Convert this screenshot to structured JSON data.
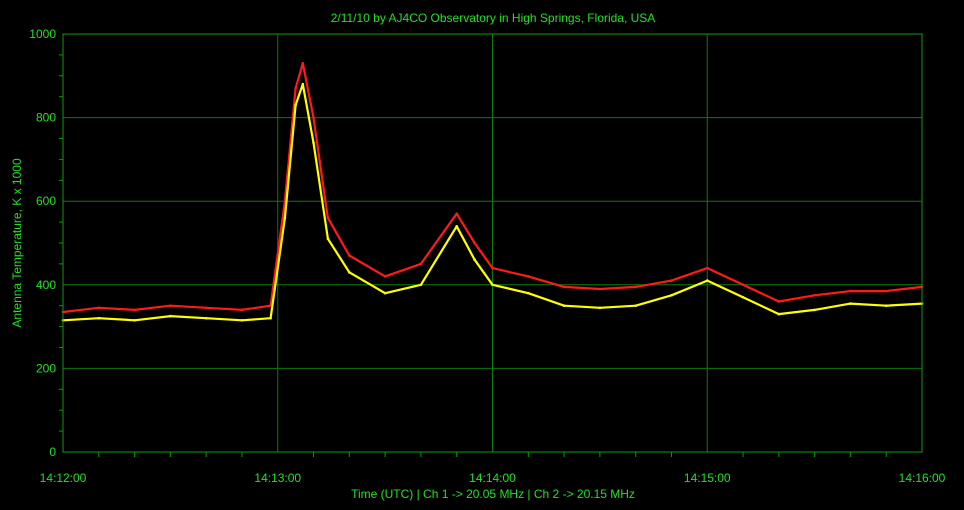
{
  "chart_data": {
    "type": "line",
    "title": "2/11/10  by  AJ4CO Observatory  in  High Springs, Florida, USA",
    "xlabel": "Time (UTC)  |  Ch 1 -> 20.05 MHz  |  Ch 2 -> 20.15 MHz",
    "ylabel": "Antenna Temperature, K x 1000",
    "xlim": [
      "14:12:00",
      "14:16:00"
    ],
    "ylim": [
      0,
      1000
    ],
    "x_ticks": [
      "14:12:00",
      "14:13:00",
      "14:14:00",
      "14:15:00",
      "14:16:00"
    ],
    "y_ticks": [
      0,
      200,
      400,
      600,
      800,
      1000
    ],
    "grid": true,
    "background": "#000000",
    "grid_color": "#0c7a0c",
    "text_color": "#22e022",
    "series": [
      {
        "color": "#ff1a1a",
        "x": [
          "14:12:00",
          "14:12:10",
          "14:12:20",
          "14:12:30",
          "14:12:40",
          "14:12:50",
          "14:12:58",
          "14:13:02",
          "14:13:05",
          "14:13:07",
          "14:13:10",
          "14:13:14",
          "14:13:20",
          "14:13:30",
          "14:13:40",
          "14:13:50",
          "14:13:55",
          "14:14:00",
          "14:14:10",
          "14:14:20",
          "14:14:30",
          "14:14:40",
          "14:14:50",
          "14:15:00",
          "14:15:10",
          "14:15:20",
          "14:15:30",
          "14:15:40",
          "14:15:50",
          "14:16:00"
        ],
        "values": [
          335,
          345,
          340,
          350,
          345,
          340,
          350,
          600,
          870,
          930,
          800,
          560,
          470,
          420,
          450,
          570,
          500,
          440,
          420,
          395,
          390,
          395,
          410,
          440,
          400,
          360,
          375,
          385,
          385,
          395
        ]
      },
      {
        "color": "#ffff00",
        "x": [
          "14:12:00",
          "14:12:10",
          "14:12:20",
          "14:12:30",
          "14:12:40",
          "14:12:50",
          "14:12:58",
          "14:13:02",
          "14:13:05",
          "14:13:07",
          "14:13:10",
          "14:13:14",
          "14:13:20",
          "14:13:30",
          "14:13:40",
          "14:13:50",
          "14:13:55",
          "14:14:00",
          "14:14:10",
          "14:14:20",
          "14:14:30",
          "14:14:40",
          "14:14:50",
          "14:15:00",
          "14:15:10",
          "14:15:20",
          "14:15:30",
          "14:15:40",
          "14:15:50",
          "14:16:00"
        ],
        "values": [
          315,
          320,
          315,
          325,
          320,
          315,
          320,
          560,
          830,
          880,
          740,
          510,
          430,
          380,
          400,
          540,
          460,
          400,
          380,
          350,
          345,
          350,
          375,
          410,
          370,
          330,
          340,
          355,
          350,
          355
        ]
      }
    ]
  }
}
